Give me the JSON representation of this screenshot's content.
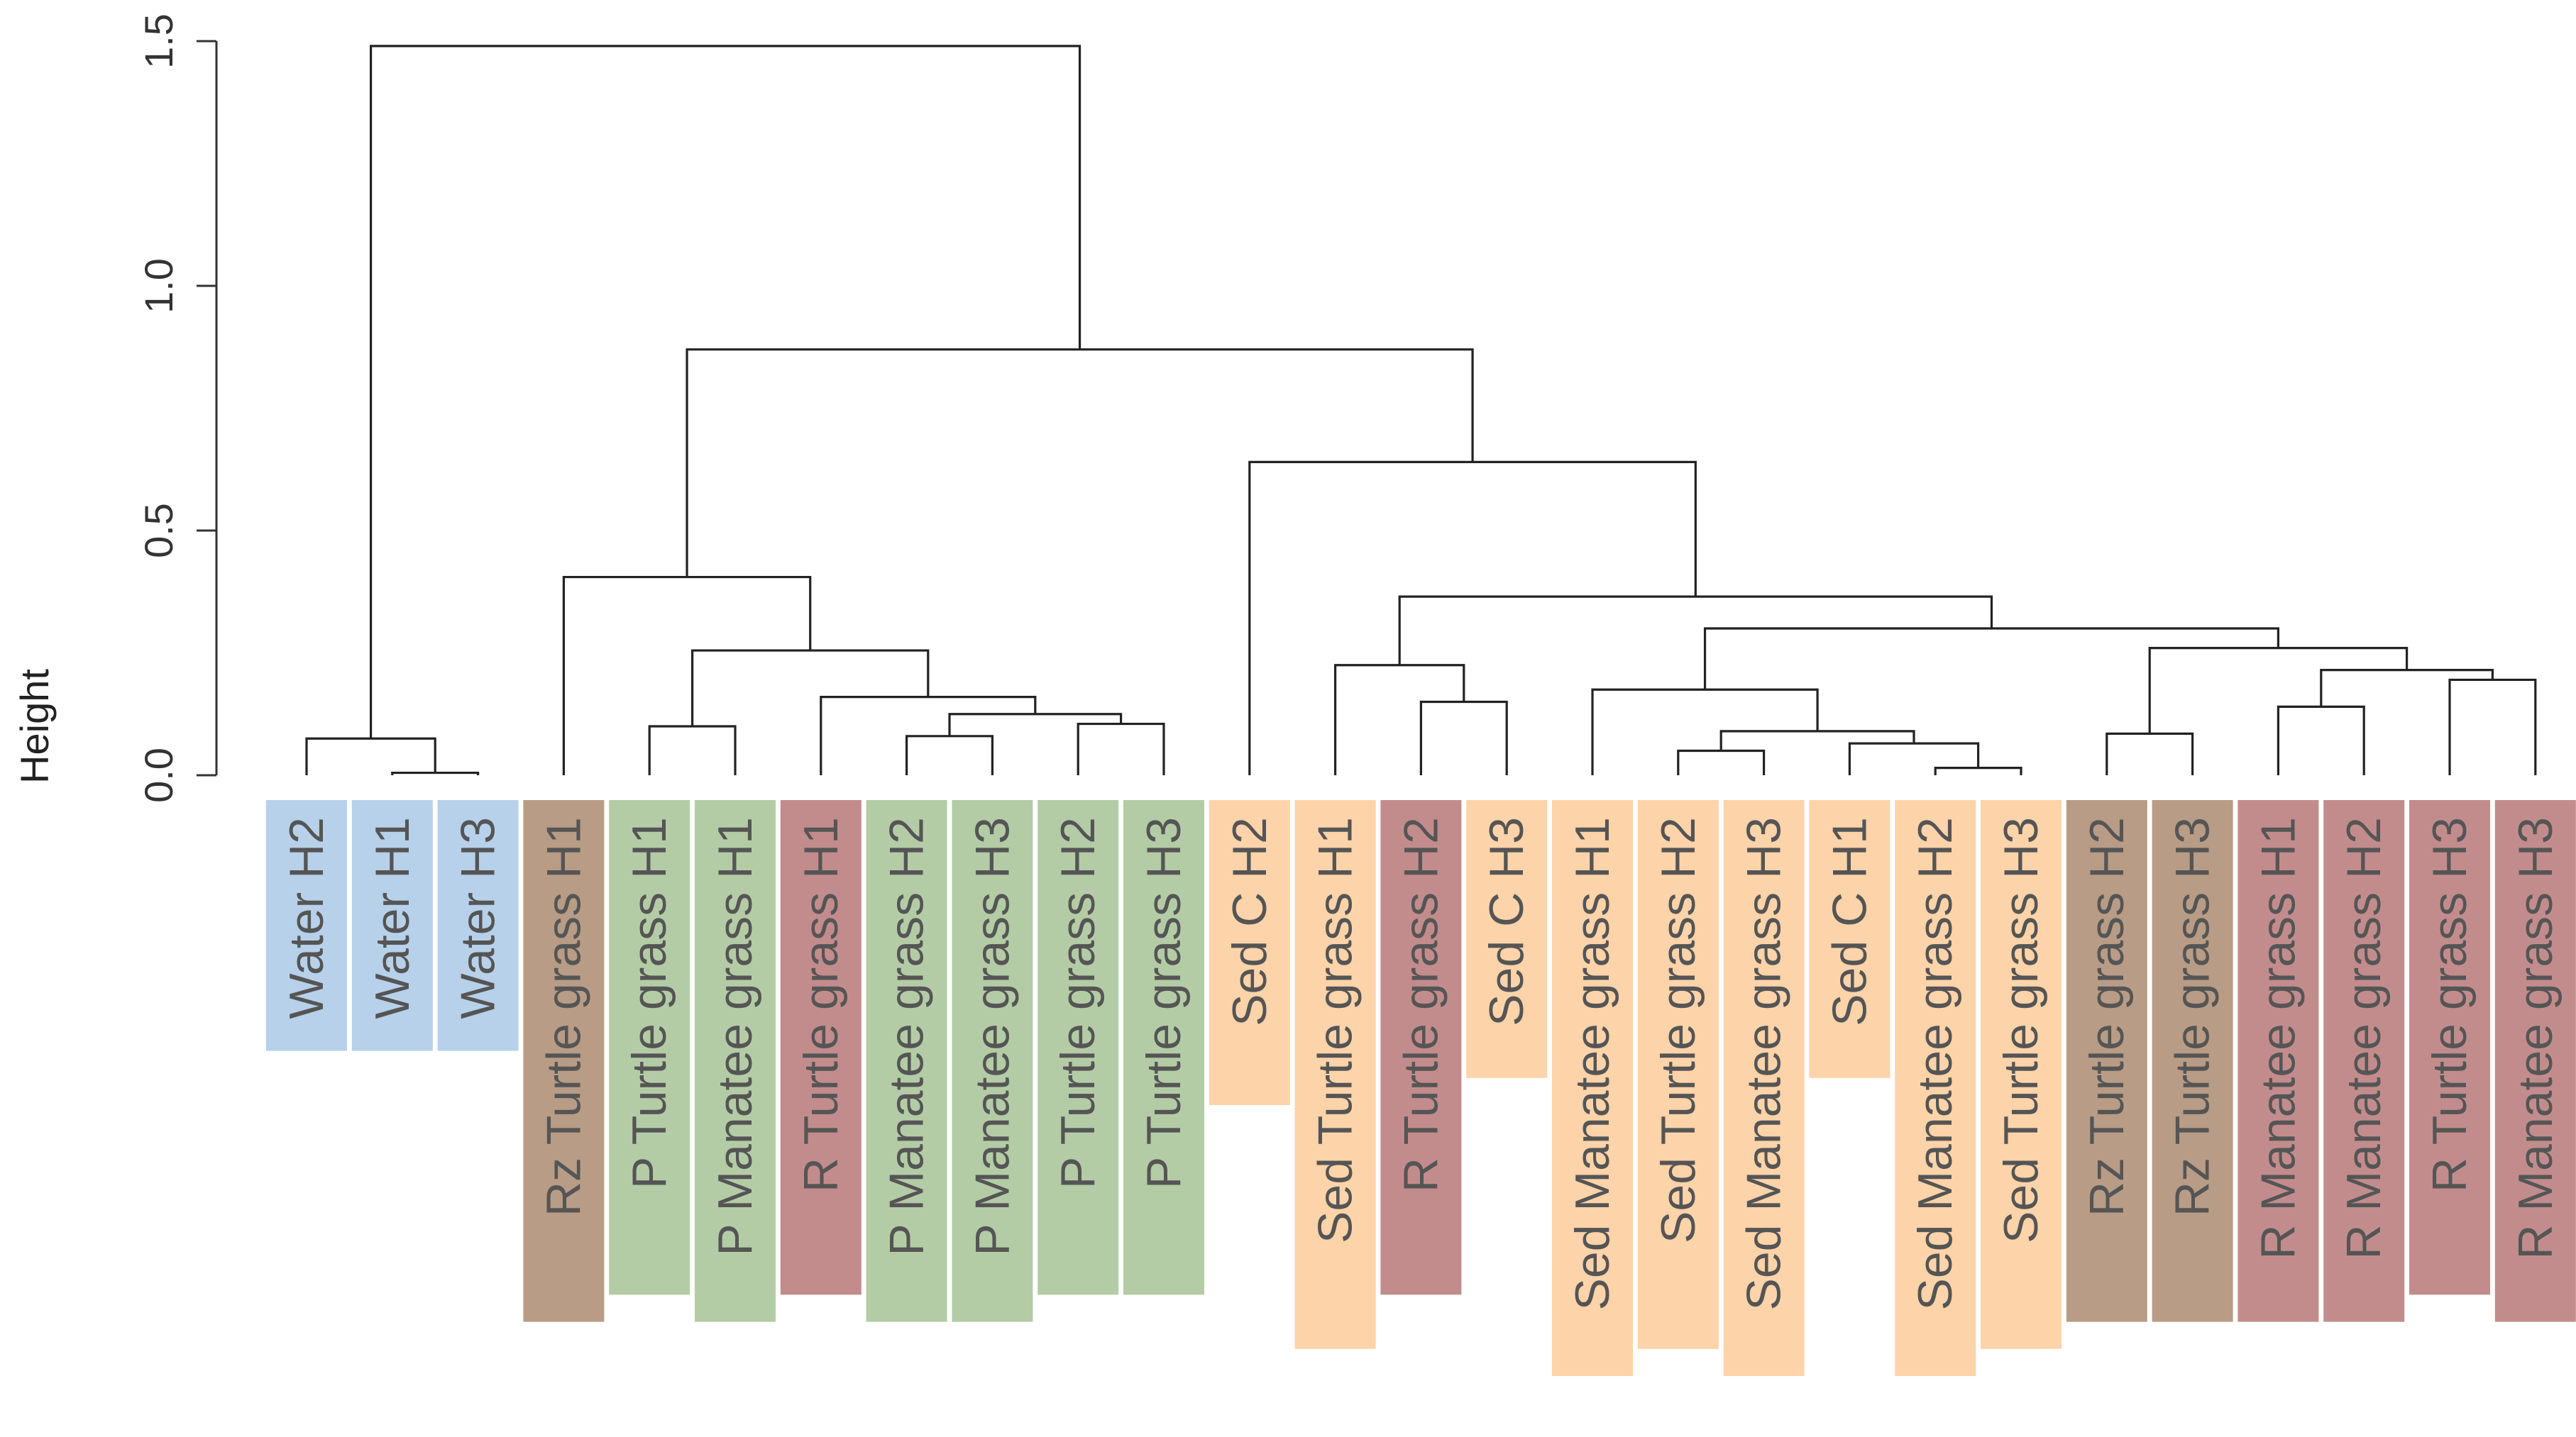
{
  "chart_data": {
    "type": "dendrogram",
    "title": "",
    "xlabel": "",
    "ylabel": "Height",
    "ylim": [
      0,
      1.5
    ],
    "yticks": [
      {
        "value": 0.0,
        "label": "0.0"
      },
      {
        "value": 0.5,
        "label": "0.5"
      },
      {
        "value": 1.0,
        "label": "1.0"
      },
      {
        "value": 1.5,
        "label": "1.5"
      }
    ],
    "category_colors": {
      "water": "#b7d1ea",
      "rhizome": "#b89c85",
      "phyllosphere": "#b3cca5",
      "root": "#c38c8c",
      "sediment": "#fdd3a9"
    },
    "leaves": [
      {
        "label": "Water H2",
        "category": "water"
      },
      {
        "label": "Water H1",
        "category": "water"
      },
      {
        "label": "Water H3",
        "category": "water"
      },
      {
        "label": "Rz Turtle grass H1",
        "category": "rhizome"
      },
      {
        "label": "P Turtle grass H1",
        "category": "phyllosphere"
      },
      {
        "label": "P Manatee grass H1",
        "category": "phyllosphere"
      },
      {
        "label": "R Turtle grass H1",
        "category": "root"
      },
      {
        "label": "P Manatee grass H2",
        "category": "phyllosphere"
      },
      {
        "label": "P Manatee grass H3",
        "category": "phyllosphere"
      },
      {
        "label": "P Turtle grass H2",
        "category": "phyllosphere"
      },
      {
        "label": "P Turtle grass H3",
        "category": "phyllosphere"
      },
      {
        "label": "Sed  C  H2",
        "category": "sediment"
      },
      {
        "label": "Sed Turtle grass H1",
        "category": "sediment"
      },
      {
        "label": "R Turtle grass H2",
        "category": "root"
      },
      {
        "label": "Sed  C H3",
        "category": "sediment"
      },
      {
        "label": "Sed Manatee grass H1",
        "category": "sediment"
      },
      {
        "label": "Sed Turtle grass H2",
        "category": "sediment"
      },
      {
        "label": "Sed Manatee grass H3",
        "category": "sediment"
      },
      {
        "label": "Sed  C H1",
        "category": "sediment"
      },
      {
        "label": "Sed Manatee grass H2",
        "category": "sediment"
      },
      {
        "label": "Sed Turtle grass H3",
        "category": "sediment"
      },
      {
        "label": "Rz Turtle grass H2",
        "category": "rhizome"
      },
      {
        "label": "Rz Turtle grass H3",
        "category": "rhizome"
      },
      {
        "label": "R Manatee grass H1",
        "category": "root"
      },
      {
        "label": "R Manatee grass H2",
        "category": "root"
      },
      {
        "label": "R Turtle grass H3",
        "category": "root"
      },
      {
        "label": "R Manatee grass H3",
        "category": "root"
      }
    ],
    "merges": [
      {
        "id": "m1",
        "children": [
          "L1",
          "L2"
        ],
        "height": 0.005
      },
      {
        "id": "m2",
        "children": [
          "L0",
          "m1"
        ],
        "height": 0.075
      },
      {
        "id": "m3",
        "children": [
          "L4",
          "L5"
        ],
        "height": 0.1
      },
      {
        "id": "m4",
        "children": [
          "L7",
          "L8"
        ],
        "height": 0.08
      },
      {
        "id": "m5",
        "children": [
          "L9",
          "L10"
        ],
        "height": 0.105
      },
      {
        "id": "m6",
        "children": [
          "m4",
          "m5"
        ],
        "height": 0.125
      },
      {
        "id": "m7",
        "children": [
          "L6",
          "m6"
        ],
        "height": 0.16
      },
      {
        "id": "m8",
        "children": [
          "m3",
          "m7"
        ],
        "height": 0.255
      },
      {
        "id": "m9",
        "children": [
          "L3",
          "m8"
        ],
        "height": 0.405
      },
      {
        "id": "m10",
        "children": [
          "L13",
          "L14"
        ],
        "height": 0.15
      },
      {
        "id": "m11",
        "children": [
          "L12",
          "m10"
        ],
        "height": 0.225
      },
      {
        "id": "m12",
        "children": [
          "L16",
          "L17"
        ],
        "height": 0.05
      },
      {
        "id": "m13",
        "children": [
          "L19",
          "L20"
        ],
        "height": 0.015
      },
      {
        "id": "m14",
        "children": [
          "L18",
          "m13"
        ],
        "height": 0.065
      },
      {
        "id": "m15",
        "children": [
          "m12",
          "m14"
        ],
        "height": 0.09
      },
      {
        "id": "m16",
        "children": [
          "L15",
          "m15"
        ],
        "height": 0.175
      },
      {
        "id": "m17",
        "children": [
          "L21",
          "L22"
        ],
        "height": 0.085
      },
      {
        "id": "m18",
        "children": [
          "L23",
          "L24"
        ],
        "height": 0.14
      },
      {
        "id": "m19",
        "children": [
          "L25",
          "L26"
        ],
        "height": 0.195
      },
      {
        "id": "m20",
        "children": [
          "m18",
          "m19"
        ],
        "height": 0.215
      },
      {
        "id": "m21",
        "children": [
          "m17",
          "m20"
        ],
        "height": 0.26
      },
      {
        "id": "m22",
        "children": [
          "m16",
          "m21"
        ],
        "height": 0.3
      },
      {
        "id": "m23",
        "children": [
          "m11",
          "m22"
        ],
        "height": 0.365
      },
      {
        "id": "m24",
        "children": [
          "L11",
          "m23"
        ],
        "height": 0.64
      },
      {
        "id": "m25",
        "children": [
          "m9",
          "m24"
        ],
        "height": 0.87
      },
      {
        "id": "m26",
        "children": [
          "m2",
          "m25"
        ],
        "height": 1.49
      }
    ]
  }
}
